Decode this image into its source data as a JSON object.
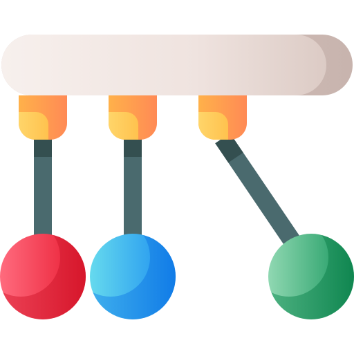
{
  "icon": {
    "name": "newtons-cradle-icon",
    "colors": {
      "bar_light": "#F6EEEB",
      "bar_mid": "#E5D6D1",
      "bar_dark": "#CDBAB4",
      "clamp_top": "#FF9A4E",
      "clamp_light": "#FFD166",
      "string": "#4A6A6E",
      "string_dark": "#35504F",
      "ball_red": "#EE1F3C",
      "ball_red_light": "#FF6A7A",
      "ball_blue": "#1E8EF2",
      "ball_blue_light": "#62D6F2",
      "ball_green": "#12925A",
      "ball_green_light": "#8ED6B0"
    },
    "pendulums": [
      {
        "name": "left",
        "ball_color": "red",
        "swung": false
      },
      {
        "name": "middle",
        "ball_color": "blue",
        "swung": false
      },
      {
        "name": "right",
        "ball_color": "green",
        "swung": true
      }
    ]
  }
}
